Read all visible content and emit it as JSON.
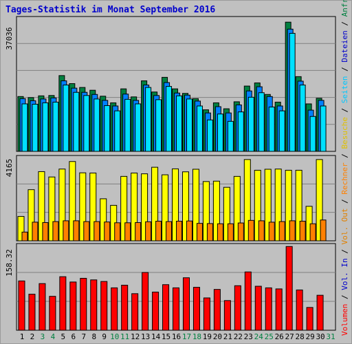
{
  "title": "Tages-Statistik im Monat September 2016",
  "colors": {
    "hits": "#008040",
    "files": "#0080ff",
    "pages": "#00e0ff",
    "visits": "#ffff00",
    "sites": "#ff8000",
    "kbytes": "#ff0000",
    "weekend_label": "#008040",
    "weekday_label": "#000000"
  },
  "side_legend": {
    "top": [
      {
        "text": "Anfragen",
        "color": "#008040"
      },
      {
        "text": " / ",
        "color": "#000000"
      },
      {
        "text": "Dateien",
        "color": "#0000cc"
      },
      {
        "text": " / ",
        "color": "#000000"
      },
      {
        "text": "Seiten",
        "color": "#00c8ff"
      },
      {
        "text": " / ",
        "color": "#000000"
      },
      {
        "text": "Besuche",
        "color": "#e0c000"
      },
      {
        "text": " / ",
        "color": "#000000"
      },
      {
        "text": "Rechner",
        "color": "#ff8000"
      },
      {
        "text": " / ",
        "color": "#000000"
      },
      {
        "text": "Vol. Out",
        "color": "#e08000"
      },
      {
        "text": " / ",
        "color": "#000000"
      },
      {
        "text": "Vol. In",
        "color": "#0000cc"
      },
      {
        "text": " / ",
        "color": "#000000"
      },
      {
        "text": "Volumen",
        "color": "#ff0000"
      }
    ]
  },
  "chart_data": [
    {
      "type": "bar",
      "ymax_label": "37036",
      "ymax": 37036,
      "categories": [
        "1",
        "2",
        "3",
        "4",
        "5",
        "6",
        "7",
        "8",
        "9",
        "10",
        "11",
        "12",
        "13",
        "14",
        "15",
        "16",
        "17",
        "18",
        "19",
        "20",
        "21",
        "22",
        "23",
        "24",
        "25",
        "26",
        "27",
        "28",
        "29",
        "30"
      ],
      "weekend": [
        false,
        false,
        true,
        true,
        false,
        false,
        false,
        false,
        false,
        true,
        true,
        false,
        false,
        false,
        false,
        false,
        true,
        true,
        false,
        false,
        false,
        false,
        false,
        true,
        true,
        false,
        false,
        false,
        false,
        false
      ],
      "series": [
        {
          "name": "Anfragen",
          "values": [
            15700,
            15400,
            15900,
            16000,
            21700,
            19400,
            18300,
            17500,
            15800,
            13900,
            17900,
            15600,
            20200,
            17000,
            21200,
            17900,
            16600,
            15100,
            11900,
            13900,
            12200,
            14200,
            18700,
            19600,
            16300,
            14100,
            37000,
            21400,
            13600,
            15200
          ]
        },
        {
          "name": "Dateien",
          "values": [
            15100,
            14500,
            15000,
            15300,
            20200,
            18100,
            16900,
            16300,
            14600,
            13000,
            16400,
            14600,
            19000,
            16000,
            19700,
            16700,
            16100,
            14400,
            11000,
            12800,
            11000,
            13300,
            17300,
            18500,
            15700,
            13000,
            35000,
            20100,
            11800,
            14600
          ]
        },
        {
          "name": "Seiten",
          "values": [
            13600,
            13500,
            13900,
            14100,
            19000,
            16900,
            16000,
            15000,
            13100,
            11600,
            14900,
            13600,
            18300,
            14800,
            18600,
            15900,
            15000,
            13000,
            9000,
            10700,
            8600,
            11300,
            15500,
            16800,
            12700,
            11600,
            33800,
            19000,
            10000,
            13000
          ]
        }
      ]
    },
    {
      "type": "bar",
      "ymax_label": "4165",
      "ymax": 4165,
      "categories": [
        "1",
        "2",
        "3",
        "4",
        "5",
        "6",
        "7",
        "8",
        "9",
        "10",
        "11",
        "12",
        "13",
        "14",
        "15",
        "16",
        "17",
        "18",
        "19",
        "20",
        "21",
        "22",
        "23",
        "24",
        "25",
        "26",
        "27",
        "28",
        "29",
        "30"
      ],
      "series": [
        {
          "name": "Besuche",
          "values": [
            1230,
            2580,
            3490,
            3220,
            3620,
            4000,
            3430,
            3420,
            2120,
            1790,
            3250,
            3420,
            3380,
            3710,
            3330,
            3630,
            3480,
            3610,
            2990,
            3010,
            2700,
            3250,
            4100,
            3560,
            3610,
            3620,
            3560,
            3560,
            1740,
            4100
          ]
        },
        {
          "name": "Rechner",
          "values": [
            440,
            940,
            920,
            970,
            1010,
            1010,
            970,
            970,
            950,
            910,
            910,
            920,
            960,
            990,
            970,
            990,
            1000,
            880,
            870,
            860,
            860,
            900,
            1030,
            1010,
            940,
            970,
            1010,
            990,
            860,
            1050
          ]
        }
      ]
    },
    {
      "type": "bar",
      "ymax_label": "158.32",
      "ymax": 158.32,
      "categories": [
        "1",
        "2",
        "3",
        "4",
        "5",
        "6",
        "7",
        "8",
        "9",
        "10",
        "11",
        "12",
        "13",
        "14",
        "15",
        "16",
        "17",
        "18",
        "19",
        "20",
        "21",
        "22",
        "23",
        "24",
        "25",
        "26",
        "27",
        "28",
        "29",
        "30"
      ],
      "series": [
        {
          "name": "Volumen",
          "values": [
            93,
            68,
            88,
            64,
            101,
            91,
            98,
            95,
            92,
            80,
            85,
            69,
            109,
            72,
            86,
            80,
            99,
            81,
            61,
            77,
            56,
            84,
            110,
            83,
            80,
            78,
            158,
            76,
            43,
            66
          ]
        }
      ]
    }
  ],
  "x_axis_labels": [
    "1",
    "2",
    "3",
    "4",
    "5",
    "6",
    "7",
    "8",
    "9",
    "10",
    "11",
    "12",
    "13",
    "14",
    "15",
    "16",
    "17",
    "18",
    "19",
    "20",
    "21",
    "22",
    "23",
    "24",
    "25",
    "26",
    "27",
    "28",
    "29",
    "30",
    "31"
  ],
  "x_axis_weekend": [
    false,
    false,
    true,
    true,
    false,
    false,
    false,
    false,
    false,
    true,
    true,
    false,
    false,
    false,
    false,
    false,
    true,
    true,
    false,
    false,
    false,
    false,
    false,
    true,
    true,
    false,
    false,
    false,
    false,
    false,
    true
  ]
}
